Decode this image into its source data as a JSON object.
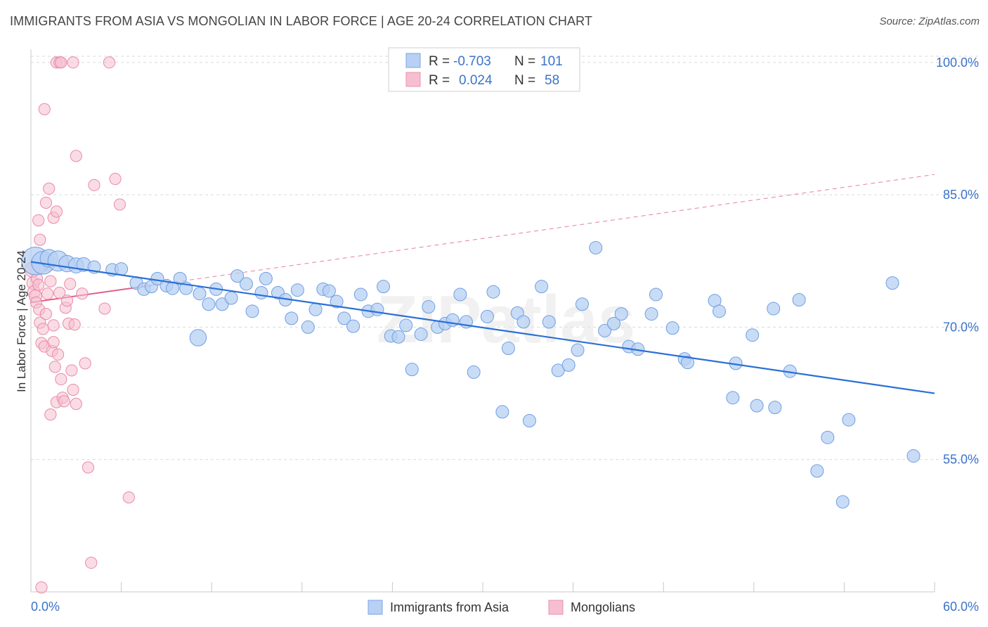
{
  "header": {
    "title": "IMMIGRANTS FROM ASIA VS MONGOLIAN IN LABOR FORCE | AGE 20-24 CORRELATION CHART",
    "source": "Source: ZipAtlas.com"
  },
  "legend_box": {
    "rows": [
      {
        "r_label": "R =",
        "r_value": "-0.703",
        "n_label": "N =",
        "n_value": "101"
      },
      {
        "r_label": "R =",
        "r_value": "0.024",
        "n_label": "N =",
        "n_value": "58"
      }
    ]
  },
  "colors": {
    "blue": "#2b6fd6",
    "blue_fill": "#b7d0f3",
    "pink": "#e0608a",
    "pink_fill": "#f6bfd0",
    "grid": "#d9d9d9",
    "value_text": "#3b73c9"
  },
  "watermark": "ZIPatlas",
  "chart_data": {
    "type": "scatter",
    "title": "IMMIGRANTS FROM ASIA VS MONGOLIAN IN LABOR FORCE | AGE 20-24 CORRELATION CHART",
    "ylabel": "In Labor Force | Age 20-24",
    "xlabel": "",
    "xlim": [
      0,
      60
    ],
    "ylim": [
      40,
      101.5
    ],
    "x_tick_labels": [
      "0.0%",
      "60.0%"
    ],
    "y_tick_values": [
      55,
      70,
      85,
      100
    ],
    "y_tick_labels": [
      "55.0%",
      "70.0%",
      "85.0%",
      "100.0%"
    ],
    "grid": true,
    "legend_position": "bottom",
    "series": [
      {
        "name": "Immigrants from Asia",
        "color": "#2b6fd6",
        "R": -0.703,
        "N": 101,
        "trend": {
          "x": [
            0,
            60
          ],
          "y": [
            77.4,
            62.5
          ],
          "style": "solid"
        },
        "points": [
          [
            0.3,
            77.5,
            2.2
          ],
          [
            0.8,
            77.3,
            1.8
          ],
          [
            1.2,
            77.8,
            1.4
          ],
          [
            1.8,
            77.5,
            1.6
          ],
          [
            2.4,
            77.2,
            1.3
          ],
          [
            3.0,
            77.0,
            1.2
          ],
          [
            3.5,
            77.1,
            1.1
          ],
          [
            4.2,
            76.8,
            1.0
          ],
          [
            5.4,
            76.5,
            1.0
          ],
          [
            6.0,
            76.6,
            1.0
          ],
          [
            7.0,
            75.0,
            1.0
          ],
          [
            7.5,
            74.3,
            1.0
          ],
          [
            8.0,
            74.6,
            1.0
          ],
          [
            8.4,
            75.5,
            1.0
          ],
          [
            9.0,
            74.7,
            1.0
          ],
          [
            9.4,
            74.4,
            1.0
          ],
          [
            9.9,
            75.5,
            1.0
          ],
          [
            10.3,
            74.4,
            1.0
          ],
          [
            11.2,
            73.8,
            1.0
          ],
          [
            11.8,
            72.6,
            1.0
          ],
          [
            12.3,
            74.3,
            1.0
          ],
          [
            12.7,
            72.6,
            1.0
          ],
          [
            13.3,
            73.3,
            1.0
          ],
          [
            13.7,
            75.8,
            1.0
          ],
          [
            14.3,
            74.9,
            1.0
          ],
          [
            14.7,
            71.8,
            1.0
          ],
          [
            15.3,
            73.9,
            1.0
          ],
          [
            15.6,
            75.5,
            1.0
          ],
          [
            16.4,
            73.9,
            1.0
          ],
          [
            16.9,
            73.1,
            1.0
          ],
          [
            17.3,
            71.0,
            1.0
          ],
          [
            17.7,
            74.2,
            1.0
          ],
          [
            18.4,
            70.0,
            1.0
          ],
          [
            18.9,
            72.0,
            1.0
          ],
          [
            19.4,
            74.3,
            1.0
          ],
          [
            19.8,
            74.1,
            1.0
          ],
          [
            20.3,
            72.9,
            1.0
          ],
          [
            20.8,
            71.0,
            1.0
          ],
          [
            21.4,
            70.1,
            1.0
          ],
          [
            21.9,
            73.7,
            1.0
          ],
          [
            22.4,
            71.8,
            1.0
          ],
          [
            23.0,
            72.0,
            1.0
          ],
          [
            23.4,
            74.6,
            1.0
          ],
          [
            23.9,
            69.0,
            1.0
          ],
          [
            24.4,
            68.9,
            1.0
          ],
          [
            24.9,
            70.2,
            1.0
          ],
          [
            25.3,
            65.2,
            1.0
          ],
          [
            25.9,
            69.2,
            1.0
          ],
          [
            26.4,
            72.3,
            1.0
          ],
          [
            27.0,
            70.0,
            1.0
          ],
          [
            27.5,
            70.4,
            1.0
          ],
          [
            28.0,
            70.8,
            1.0
          ],
          [
            28.5,
            73.7,
            1.0
          ],
          [
            28.9,
            70.6,
            1.0
          ],
          [
            29.4,
            64.9,
            1.0
          ],
          [
            30.3,
            71.2,
            1.0
          ],
          [
            30.7,
            74.0,
            1.0
          ],
          [
            31.3,
            60.4,
            1.0
          ],
          [
            31.7,
            67.6,
            1.0
          ],
          [
            32.3,
            71.6,
            1.0
          ],
          [
            32.7,
            70.6,
            1.0
          ],
          [
            33.1,
            59.4,
            1.0
          ],
          [
            33.9,
            74.6,
            1.0
          ],
          [
            34.4,
            70.6,
            1.0
          ],
          [
            35.0,
            65.1,
            1.0
          ],
          [
            35.7,
            65.7,
            1.0
          ],
          [
            36.3,
            67.4,
            1.0
          ],
          [
            36.6,
            72.6,
            1.0
          ],
          [
            37.5,
            79.0,
            1.0
          ],
          [
            38.1,
            69.6,
            1.0
          ],
          [
            38.7,
            70.4,
            1.0
          ],
          [
            39.2,
            71.5,
            1.0
          ],
          [
            39.7,
            67.8,
            1.0
          ],
          [
            40.3,
            67.5,
            1.0
          ],
          [
            41.2,
            71.5,
            1.0
          ],
          [
            41.5,
            73.7,
            1.0
          ],
          [
            42.6,
            69.9,
            1.0
          ],
          [
            43.4,
            66.4,
            1.0
          ],
          [
            43.6,
            66.0,
            1.0
          ],
          [
            45.4,
            73.0,
            1.0
          ],
          [
            45.7,
            71.8,
            1.0
          ],
          [
            46.6,
            62.0,
            1.0
          ],
          [
            46.8,
            65.9,
            1.0
          ],
          [
            47.9,
            69.1,
            1.0
          ],
          [
            48.2,
            61.1,
            1.0
          ],
          [
            49.3,
            72.1,
            1.0
          ],
          [
            49.4,
            60.9,
            1.0
          ],
          [
            50.4,
            65.0,
            1.0
          ],
          [
            51.0,
            73.1,
            1.0
          ],
          [
            52.2,
            53.7,
            1.0
          ],
          [
            52.9,
            57.5,
            1.0
          ],
          [
            53.9,
            50.2,
            1.0
          ],
          [
            54.3,
            59.5,
            1.0
          ],
          [
            57.2,
            75.0,
            1.0
          ],
          [
            58.6,
            55.4,
            1.0
          ],
          [
            11.1,
            68.8,
            1.3
          ]
        ]
      },
      {
        "name": "Mongolians",
        "color": "#e0608a",
        "R": 0.024,
        "N": 58,
        "trend": {
          "x": [
            0,
            60
          ],
          "y": [
            72.8,
            87.3
          ],
          "solid_until": 8
        },
        "points": [
          [
            0.1,
            76.5,
            1.2
          ],
          [
            0.15,
            75.0,
            1.0
          ],
          [
            0.2,
            74.0,
            1.0
          ],
          [
            0.3,
            73.5,
            1.0
          ],
          [
            0.35,
            72.8,
            0.9
          ],
          [
            0.4,
            75.5,
            0.9
          ],
          [
            0.5,
            74.8,
            0.9
          ],
          [
            0.55,
            72.0,
            0.9
          ],
          [
            0.6,
            70.5,
            0.9
          ],
          [
            0.7,
            68.2,
            0.9
          ],
          [
            0.8,
            69.8,
            0.9
          ],
          [
            0.9,
            67.8,
            0.9
          ],
          [
            1.0,
            71.5,
            0.9
          ],
          [
            1.1,
            73.8,
            0.9
          ],
          [
            1.2,
            77.0,
            0.9
          ],
          [
            1.3,
            75.2,
            0.9
          ],
          [
            1.4,
            67.3,
            0.9
          ],
          [
            1.5,
            70.2,
            0.9
          ],
          [
            1.6,
            65.5,
            0.9
          ],
          [
            1.7,
            61.5,
            0.9
          ],
          [
            1.8,
            66.9,
            0.9
          ],
          [
            1.9,
            73.9,
            0.9
          ],
          [
            2.0,
            64.1,
            0.9
          ],
          [
            2.1,
            62.0,
            0.9
          ],
          [
            2.2,
            61.6,
            0.9
          ],
          [
            2.3,
            72.2,
            0.9
          ],
          [
            2.4,
            73.0,
            0.9
          ],
          [
            2.5,
            70.4,
            0.9
          ],
          [
            2.6,
            74.9,
            0.9
          ],
          [
            2.7,
            65.1,
            0.9
          ],
          [
            2.8,
            62.9,
            0.9
          ],
          [
            2.9,
            70.3,
            0.9
          ],
          [
            3.0,
            61.3,
            0.9
          ],
          [
            0.5,
            82.1,
            0.9
          ],
          [
            0.6,
            79.9,
            0.9
          ],
          [
            1.0,
            84.1,
            0.9
          ],
          [
            1.2,
            85.7,
            0.9
          ],
          [
            1.5,
            82.4,
            0.9
          ],
          [
            1.7,
            83.1,
            0.9
          ],
          [
            3.0,
            89.4,
            0.9
          ],
          [
            3.6,
            65.9,
            0.9
          ],
          [
            3.8,
            54.1,
            0.9
          ],
          [
            4.2,
            86.1,
            0.9
          ],
          [
            4.9,
            72.1,
            0.9
          ],
          [
            3.4,
            73.8,
            0.9
          ],
          [
            0.9,
            94.7,
            0.9
          ],
          [
            1.3,
            60.1,
            0.9
          ],
          [
            1.5,
            68.3,
            0.9
          ],
          [
            1.7,
            100.0,
            0.9
          ],
          [
            1.9,
            100.0,
            0.9
          ],
          [
            2.0,
            100.0,
            0.9
          ],
          [
            2.8,
            100.0,
            0.9
          ],
          [
            5.2,
            100.0,
            0.9
          ],
          [
            5.6,
            86.8,
            0.9
          ],
          [
            5.9,
            83.9,
            0.9
          ],
          [
            4.0,
            43.3,
            0.9
          ],
          [
            6.5,
            50.7,
            0.9
          ],
          [
            0.7,
            40.5,
            0.9
          ]
        ]
      }
    ]
  }
}
